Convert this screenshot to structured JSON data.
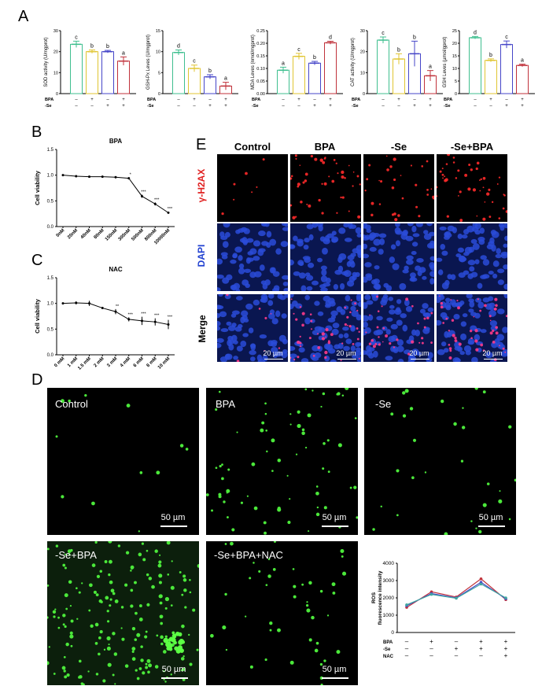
{
  "panels": {
    "A": "A",
    "B": "B",
    "C": "C",
    "D": "D",
    "E": "E"
  },
  "chart_data": [
    {
      "id": "A-sod",
      "type": "bar",
      "ylabel": "SOD activity (U/mgprot)",
      "ylim": [
        0,
        30
      ],
      "yticks": [
        "0",
        "10",
        "20",
        "30"
      ],
      "rows": [
        {
          "label": "BPA",
          "marks": [
            "–",
            "+",
            "–",
            "+"
          ]
        },
        {
          "label": "-Se",
          "marks": [
            "–",
            "–",
            "+",
            "+"
          ]
        }
      ],
      "values": [
        23.5,
        20,
        20,
        15.5
      ],
      "errors": [
        1.5,
        0.8,
        0.6,
        2.0
      ],
      "letters": [
        "c",
        "b",
        "b",
        "a"
      ],
      "colors": [
        "#3fbf8f",
        "#e0c531",
        "#4545c8",
        "#c0323b"
      ]
    },
    {
      "id": "A-gsh-px",
      "type": "bar",
      "ylabel": "GSH-Px Leves (U/mgprot)",
      "ylim": [
        0,
        15
      ],
      "yticks": [
        "0",
        "5",
        "10",
        "15"
      ],
      "rows": [
        {
          "label": "BPA",
          "marks": [
            "–",
            "+",
            "–",
            "+"
          ]
        },
        {
          "label": "-Se",
          "marks": [
            "–",
            "–",
            "+",
            "+"
          ]
        }
      ],
      "values": [
        9.8,
        6.0,
        4.0,
        1.8
      ],
      "errors": [
        0.6,
        0.8,
        0.5,
        0.9
      ],
      "letters": [
        "d",
        "c",
        "b",
        "a"
      ],
      "colors": [
        "#3fbf8f",
        "#e0c531",
        "#4545c8",
        "#c0323b"
      ]
    },
    {
      "id": "A-mda",
      "type": "bar",
      "ylabel": "MDA Leves (nmol/mgprot)",
      "ylim": [
        0,
        0.25
      ],
      "yticks": [
        "0.00",
        "0.05",
        "0.10",
        "0.15",
        "0.20",
        "0.25"
      ],
      "rows": [
        {
          "label": "BPA",
          "marks": [
            "–",
            "+",
            "–",
            "+"
          ]
        },
        {
          "label": "-Se",
          "marks": [
            "–",
            "–",
            "+",
            "+"
          ]
        }
      ],
      "values": [
        0.093,
        0.148,
        0.121,
        0.202
      ],
      "errors": [
        0.012,
        0.012,
        0.007,
        0.006
      ],
      "letters": [
        "a",
        "c",
        "b",
        "d"
      ],
      "colors": [
        "#3fbf8f",
        "#e0c531",
        "#4545c8",
        "#c0323b"
      ]
    },
    {
      "id": "A-cat",
      "type": "bar",
      "ylabel": "CAT activity (U/mgprot)",
      "ylim": [
        0,
        30
      ],
      "yticks": [
        "0",
        "10",
        "20",
        "30"
      ],
      "rows": [
        {
          "label": "BPA",
          "marks": [
            "–",
            "+",
            "–",
            "+"
          ]
        },
        {
          "label": "-Se",
          "marks": [
            "–",
            "–",
            "+",
            "+"
          ]
        }
      ],
      "values": [
        25.5,
        16.5,
        19,
        8.5
      ],
      "errors": [
        1.5,
        2.5,
        6,
        2.5
      ],
      "letters": [
        "c",
        "b",
        "b",
        "a"
      ],
      "colors": [
        "#3fbf8f",
        "#e0c531",
        "#4545c8",
        "#c0323b"
      ]
    },
    {
      "id": "A-gsh",
      "type": "bar",
      "ylabel": "GSH Leves (µmol/gprot)",
      "ylim": [
        0,
        25
      ],
      "yticks": [
        "0",
        "5",
        "10",
        "15",
        "20",
        "25"
      ],
      "rows": [
        {
          "label": "BPA",
          "marks": [
            "–",
            "+",
            "–",
            "+"
          ]
        },
        {
          "label": "-Se",
          "marks": [
            "–",
            "–",
            "+",
            "+"
          ]
        }
      ],
      "values": [
        22.2,
        13.2,
        19.5,
        11.2
      ],
      "errors": [
        0.5,
        0.6,
        1.4,
        0.5
      ],
      "letters": [
        "d",
        "b",
        "c",
        "a"
      ],
      "colors": [
        "#3fbf8f",
        "#e0c531",
        "#4545c8",
        "#c0323b"
      ]
    },
    {
      "id": "B",
      "type": "line",
      "title": "BPA",
      "ylabel": "Cell viability",
      "ylim": [
        0,
        1.5
      ],
      "yticks": [
        "0.0",
        "0.5",
        "1.0",
        "1.5"
      ],
      "categories": [
        "0nM",
        "20nM",
        "40nM",
        "80nM",
        "150nM",
        "300nM",
        "500nM",
        "800nM",
        "10000nM"
      ],
      "values": [
        1.0,
        0.98,
        0.97,
        0.97,
        0.96,
        0.94,
        0.59,
        0.44,
        0.27
      ],
      "errors": [
        0.01,
        0.02,
        0.02,
        0.02,
        0.02,
        0.02,
        0.03,
        0.03,
        0.02
      ],
      "sig": [
        "",
        "",
        "",
        "",
        "",
        "*",
        "***",
        "***",
        "***"
      ]
    },
    {
      "id": "C",
      "type": "line",
      "title": "NAC",
      "ylabel": "Cell viability",
      "ylim": [
        0,
        1.5
      ],
      "yticks": [
        "0.0",
        "0.5",
        "1.0",
        "1.5"
      ],
      "categories": [
        "0 mM",
        "1 mM",
        "1.5 mM",
        "2 mM",
        "3 mM",
        "4 mM",
        "6 mM",
        "8 mM",
        "10 mM"
      ],
      "values": [
        1.0,
        1.01,
        1.0,
        0.91,
        0.84,
        0.69,
        0.66,
        0.64,
        0.59
      ],
      "errors": [
        0.01,
        0.03,
        0.05,
        0.02,
        0.05,
        0.04,
        0.08,
        0.07,
        0.09
      ],
      "sig": [
        "",
        "",
        "",
        "",
        "**",
        "***",
        "***",
        "***",
        "***"
      ]
    },
    {
      "id": "D-ros",
      "type": "line",
      "ylabel": "ROS fluorescence intensity",
      "ylim": [
        0,
        4000
      ],
      "yticks": [
        "0",
        "1000",
        "2000",
        "3000",
        "4000"
      ],
      "rows": [
        {
          "label": "BPA",
          "marks": [
            "–",
            "+",
            "–",
            "+",
            "+"
          ]
        },
        {
          "label": "-Se",
          "marks": [
            "–",
            "–",
            "+",
            "+",
            "+"
          ]
        },
        {
          "label": "NAC",
          "marks": [
            "–",
            "–",
            "–",
            "–",
            "+"
          ]
        }
      ],
      "series": [
        {
          "values": [
            1450,
            2350,
            2050,
            3100,
            1900
          ],
          "color": "#c0323b"
        },
        {
          "values": [
            1550,
            2250,
            2000,
            2900,
            1950
          ],
          "color": "#4545c8"
        },
        {
          "values": [
            1600,
            2200,
            1980,
            2800,
            2000
          ],
          "color": "#3fa6a0"
        }
      ]
    }
  ],
  "panelE": {
    "columns": [
      "Control",
      "BPA",
      "-Se",
      "-Se+BPA"
    ],
    "rows": [
      {
        "label": "γ-H2AX",
        "color": "#e02020"
      },
      {
        "label": "DAPI",
        "color": "#2040d0"
      },
      {
        "label": "Merge",
        "color": "#000000"
      }
    ],
    "scale": "20 µm"
  },
  "panelD": {
    "images": [
      "Control",
      "BPA",
      "-Se",
      "-Se+BPA",
      "-Se+BPA+NAC"
    ],
    "scale": "50 µm"
  }
}
